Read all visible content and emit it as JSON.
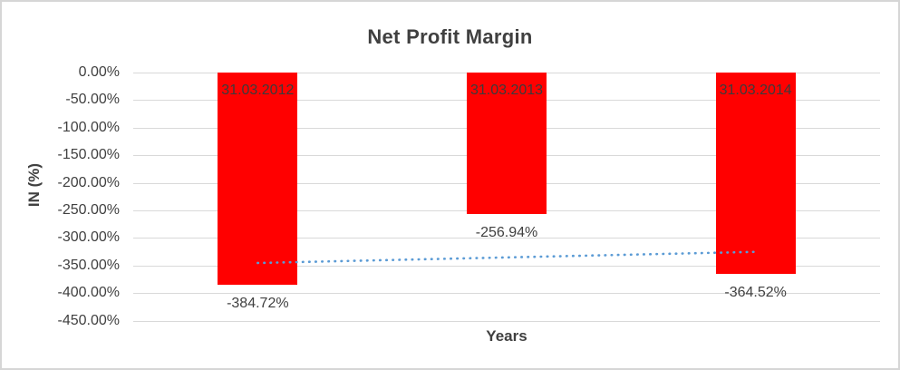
{
  "chart_data": {
    "type": "bar",
    "title": "Net Profit Margin",
    "xlabel": "Years",
    "ylabel": "IN (%)",
    "categories": [
      "31.03.2012",
      "31.03.2013",
      "31.03.2014"
    ],
    "values": [
      -384.72,
      -256.94,
      -364.52
    ],
    "value_labels": [
      "-384.72%",
      "-256.94%",
      "-364.52%"
    ],
    "ylim": [
      -450,
      0
    ],
    "ytick_step": 50,
    "ytick_labels": [
      "0.00%",
      "-50.00%",
      "-100.00%",
      "-150.00%",
      "-200.00%",
      "-250.00%",
      "-300.00%",
      "-350.00%",
      "-400.00%",
      "-450.00%"
    ],
    "grid": true,
    "legend": false,
    "trendline": {
      "type": "linear",
      "style": "dotted",
      "color": "#5b9bd5"
    },
    "colors": {
      "bar": "#ff0000",
      "text": "#404040",
      "category_label": "#3b3b3b",
      "gridline": "#d9d9d9",
      "background": "#ffffff"
    }
  }
}
